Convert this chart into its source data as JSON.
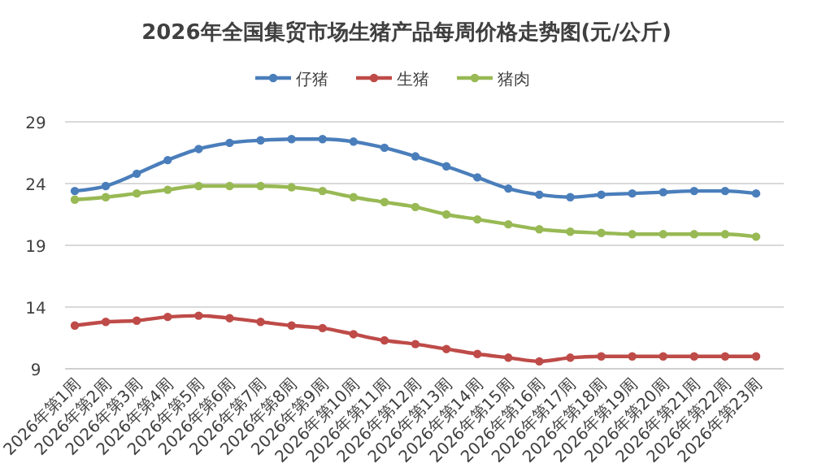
{
  "chart_data": {
    "type": "line",
    "title": "2026年全国集贸市场生猪产品每周价格走势图(元/公斤)",
    "categories": [
      "2026年第1周",
      "2026年第2周",
      "2026年第3周",
      "2026年第4周",
      "2026年第5周",
      "2026年第6周",
      "2026年第7周",
      "2026年第8周",
      "2026年第9周",
      "2026年第10周",
      "2026年第11周",
      "2026年第12周",
      "2026年第13周",
      "2026年第14周",
      "2026年第15周",
      "2026年第16周",
      "2026年第17周",
      "2026年第18周",
      "2026年第19周",
      "2026年第20周",
      "2026年第21周",
      "2026年第22周",
      "2026年第23周"
    ],
    "series": [
      {
        "name": "仔猪",
        "color": "#4a7ebb",
        "values": [
          23.4,
          23.8,
          24.8,
          25.9,
          26.8,
          27.3,
          27.5,
          27.6,
          27.6,
          27.4,
          26.9,
          26.2,
          25.4,
          24.5,
          23.6,
          23.1,
          22.9,
          23.1,
          23.2,
          23.3,
          23.4,
          23.4,
          23.2
        ]
      },
      {
        "name": "生猪",
        "color": "#be4b48",
        "values": [
          12.5,
          12.8,
          12.9,
          13.2,
          13.3,
          13.1,
          12.8,
          12.5,
          12.3,
          11.8,
          11.3,
          11.0,
          10.6,
          10.2,
          9.9,
          9.6,
          9.9,
          10.0,
          10.0,
          10.0,
          10.0,
          10.0,
          10.0
        ]
      },
      {
        "name": "猪肉",
        "color": "#98b954",
        "values": [
          22.7,
          22.9,
          23.2,
          23.5,
          23.8,
          23.8,
          23.8,
          23.7,
          23.4,
          22.9,
          22.5,
          22.1,
          21.5,
          21.1,
          20.7,
          20.3,
          20.1,
          20.0,
          19.9,
          19.9,
          19.9,
          19.9,
          19.7
        ]
      }
    ],
    "ylim": [
      9,
      29
    ],
    "yticks": [
      9,
      14,
      19,
      24,
      29
    ],
    "grid": "y",
    "legend": "top",
    "marker": "circle",
    "line_style": "solid"
  }
}
